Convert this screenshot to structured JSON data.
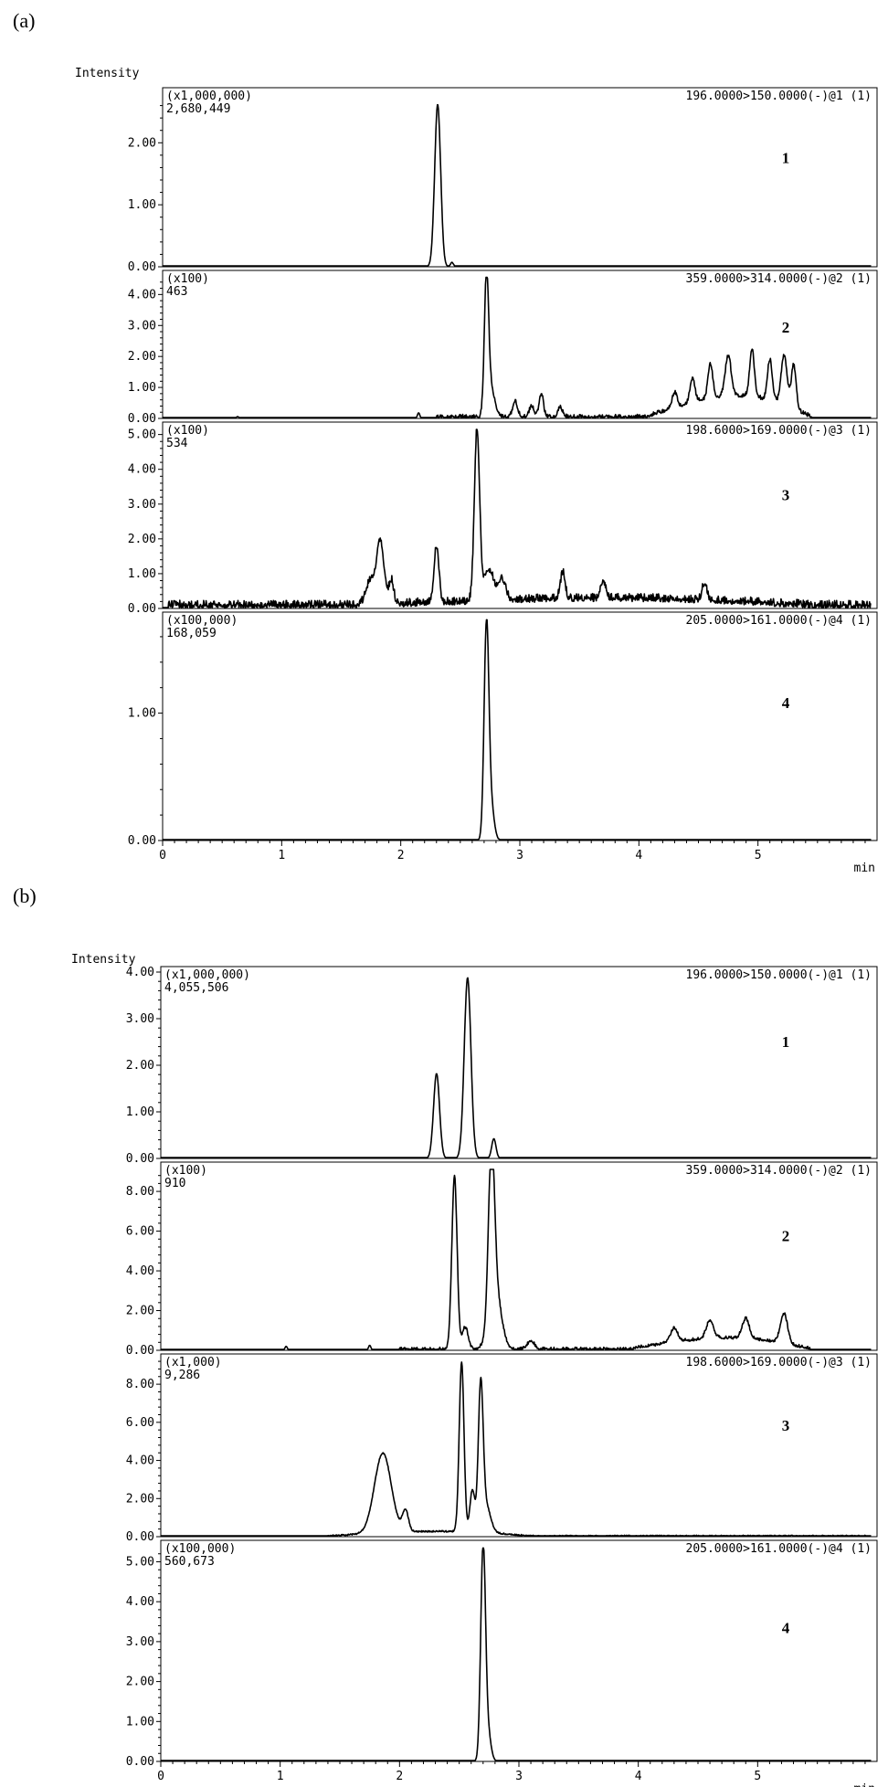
{
  "chart_data": [
    {
      "figure_label": "(a)",
      "type": "line",
      "y_title": "Intensity",
      "x_unit": "min",
      "xlim": [
        0,
        6
      ],
      "xticks": [
        "0",
        "1",
        "2",
        "3",
        "4",
        "5"
      ],
      "panels": [
        {
          "number": "1",
          "mrm": "196.0000>150.0000(-)@1 (1)",
          "scale": "(x1,000,000)",
          "max_intensity": "2,680,449",
          "ylim": [
            0,
            2.8
          ],
          "yticks": [
            "0.00",
            "1.00",
            "2.00"
          ],
          "peaks": [
            {
              "rt": 2.31,
              "height": 2.62,
              "width": 0.025
            },
            {
              "rt": 2.43,
              "height": 0.07,
              "width": 0.012
            }
          ],
          "noise": {
            "amp": 0.004,
            "start": 0.0,
            "end": 5.95
          }
        },
        {
          "number": "2",
          "mrm": "359.0000>314.0000(-)@2 (1)",
          "scale": "(x100)",
          "max_intensity": "463",
          "ylim": [
            0,
            4.6
          ],
          "yticks": [
            "0.00",
            "1.00",
            "2.00",
            "3.00",
            "4.00"
          ],
          "peaks": [
            {
              "rt": 2.72,
              "height": 4.42,
              "width": 0.018
            },
            {
              "rt": 2.76,
              "height": 0.9,
              "width": 0.03
            },
            {
              "rt": 2.96,
              "height": 0.5,
              "width": 0.02
            },
            {
              "rt": 3.1,
              "height": 0.35,
              "width": 0.02
            },
            {
              "rt": 3.18,
              "height": 0.75,
              "width": 0.018
            },
            {
              "rt": 3.34,
              "height": 0.3,
              "width": 0.02
            },
            {
              "rt": 2.15,
              "height": 0.18,
              "width": 0.01
            },
            {
              "rt": 0.63,
              "height": 0.06,
              "width": 0.01
            },
            {
              "rt": 4.3,
              "height": 0.5,
              "width": 0.02
            },
            {
              "rt": 4.45,
              "height": 0.8,
              "width": 0.02
            },
            {
              "rt": 4.6,
              "height": 1.1,
              "width": 0.02
            },
            {
              "rt": 4.75,
              "height": 1.3,
              "width": 0.025
            },
            {
              "rt": 4.95,
              "height": 1.5,
              "width": 0.02
            },
            {
              "rt": 5.1,
              "height": 1.3,
              "width": 0.02
            },
            {
              "rt": 5.22,
              "height": 1.6,
              "width": 0.025
            },
            {
              "rt": 5.3,
              "height": 1.4,
              "width": 0.02
            }
          ],
          "hump": {
            "start": 4.05,
            "end": 5.45,
            "height": 0.85
          },
          "noise": {
            "amp": 0.1,
            "start": 2.3,
            "end": 5.45
          }
        },
        {
          "number": "3",
          "mrm": "198.6000>169.0000(-)@3 (1)",
          "scale": "(x100)",
          "max_intensity": "534",
          "ylim": [
            0,
            5.2
          ],
          "yticks": [
            "0.00",
            "1.00",
            "2.00",
            "3.00",
            "4.00",
            "5.00"
          ],
          "peaks": [
            {
              "rt": 2.64,
              "height": 4.95,
              "width": 0.022
            },
            {
              "rt": 1.83,
              "height": 1.8,
              "width": 0.03
            },
            {
              "rt": 1.75,
              "height": 0.75,
              "width": 0.04
            },
            {
              "rt": 1.92,
              "height": 0.7,
              "width": 0.02
            },
            {
              "rt": 2.3,
              "height": 1.65,
              "width": 0.02
            },
            {
              "rt": 2.74,
              "height": 0.9,
              "width": 0.04
            },
            {
              "rt": 2.85,
              "height": 0.6,
              "width": 0.03
            },
            {
              "rt": 3.36,
              "height": 0.75,
              "width": 0.02
            },
            {
              "rt": 3.7,
              "height": 0.5,
              "width": 0.02
            },
            {
              "rt": 4.55,
              "height": 0.5,
              "width": 0.02
            }
          ],
          "hump": {
            "start": 1.65,
            "end": 5.45,
            "height": 0.25
          },
          "noise": {
            "amp": 0.18,
            "start": 0.05,
            "end": 5.95
          }
        },
        {
          "number": "4",
          "mrm": "205.0000>161.0000(-)@4 (1)",
          "scale": "(x100,000)",
          "max_intensity": "168,059",
          "ylim": [
            0,
            1.75
          ],
          "yticks": [
            "0.00",
            "1.00"
          ],
          "peaks": [
            {
              "rt": 2.72,
              "height": 1.68,
              "width": 0.02
            },
            {
              "rt": 2.76,
              "height": 0.25,
              "width": 0.025
            }
          ],
          "noise": {
            "amp": 0.003,
            "start": 0.0,
            "end": 5.95
          }
        }
      ]
    },
    {
      "figure_label": "(b)",
      "type": "line",
      "y_title": "Intensity",
      "x_unit": "min",
      "xlim": [
        0,
        6
      ],
      "xticks": [
        "0",
        "1",
        "2",
        "3",
        "4",
        "5"
      ],
      "panels": [
        {
          "number": "1",
          "mrm": "196.0000>150.0000(-)@1 (1)",
          "scale": "(x1,000,000)",
          "max_intensity": "4,055,506",
          "ylim": [
            0,
            4.0
          ],
          "yticks": [
            "0.00",
            "1.00",
            "2.00",
            "3.00",
            "4.00"
          ],
          "peaks": [
            {
              "rt": 2.31,
              "height": 1.82,
              "width": 0.025
            },
            {
              "rt": 2.57,
              "height": 3.88,
              "width": 0.028
            },
            {
              "rt": 2.79,
              "height": 0.42,
              "width": 0.018
            }
          ],
          "noise": {
            "amp": 0.004,
            "start": 0.0,
            "end": 5.95
          }
        },
        {
          "number": "2",
          "mrm": "359.0000>314.0000(-)@2 (1)",
          "scale": "(x100)",
          "max_intensity": "910",
          "ylim": [
            0,
            9.2
          ],
          "yticks": [
            "0.00",
            "2.00",
            "4.00",
            "6.00",
            "8.00"
          ],
          "peaks": [
            {
              "rt": 2.46,
              "height": 8.7,
              "width": 0.022
            },
            {
              "rt": 2.77,
              "height": 8.1,
              "width": 0.025
            },
            {
              "rt": 2.8,
              "height": 3.0,
              "width": 0.05
            },
            {
              "rt": 2.55,
              "height": 1.1,
              "width": 0.025
            },
            {
              "rt": 3.1,
              "height": 0.4,
              "width": 0.03
            },
            {
              "rt": 1.05,
              "height": 0.2,
              "width": 0.01
            },
            {
              "rt": 1.75,
              "height": 0.25,
              "width": 0.01
            },
            {
              "rt": 4.3,
              "height": 0.7,
              "width": 0.03
            },
            {
              "rt": 4.6,
              "height": 0.9,
              "width": 0.03
            },
            {
              "rt": 4.9,
              "height": 1.0,
              "width": 0.03
            },
            {
              "rt": 5.22,
              "height": 1.5,
              "width": 0.03
            }
          ],
          "hump": {
            "start": 3.9,
            "end": 5.45,
            "height": 0.7
          },
          "noise": {
            "amp": 0.12,
            "start": 2.0,
            "end": 5.45
          }
        },
        {
          "number": "3",
          "mrm": "198.6000>169.0000(-)@3 (1)",
          "scale": "(x1,000)",
          "max_intensity": "9,286",
          "ylim": [
            0,
            9.3
          ],
          "yticks": [
            "0.00",
            "2.00",
            "4.00",
            "6.00",
            "8.00"
          ],
          "peaks": [
            {
              "rt": 1.86,
              "height": 4.2,
              "width": 0.07
            },
            {
              "rt": 2.05,
              "height": 1.1,
              "width": 0.025
            },
            {
              "rt": 2.52,
              "height": 8.9,
              "width": 0.02
            },
            {
              "rt": 2.61,
              "height": 2.2,
              "width": 0.02
            },
            {
              "rt": 2.68,
              "height": 7.2,
              "width": 0.02
            },
            {
              "rt": 2.72,
              "height": 1.5,
              "width": 0.04
            }
          ],
          "hump": {
            "start": 1.4,
            "end": 3.1,
            "height": 0.3
          },
          "noise": {
            "amp": 0.06,
            "start": 1.4,
            "end": 5.95
          }
        },
        {
          "number": "4",
          "mrm": "205.0000>161.0000(-)@4 (1)",
          "scale": "(x100,000)",
          "max_intensity": "560,673",
          "ylim": [
            0,
            5.4
          ],
          "yticks": [
            "0.00",
            "1.00",
            "2.00",
            "3.00",
            "4.00",
            "5.00"
          ],
          "peaks": [
            {
              "rt": 2.7,
              "height": 5.32,
              "width": 0.02
            },
            {
              "rt": 2.74,
              "height": 0.7,
              "width": 0.025
            }
          ],
          "noise": {
            "amp": 0.008,
            "start": 0.0,
            "end": 5.95
          }
        }
      ]
    }
  ]
}
